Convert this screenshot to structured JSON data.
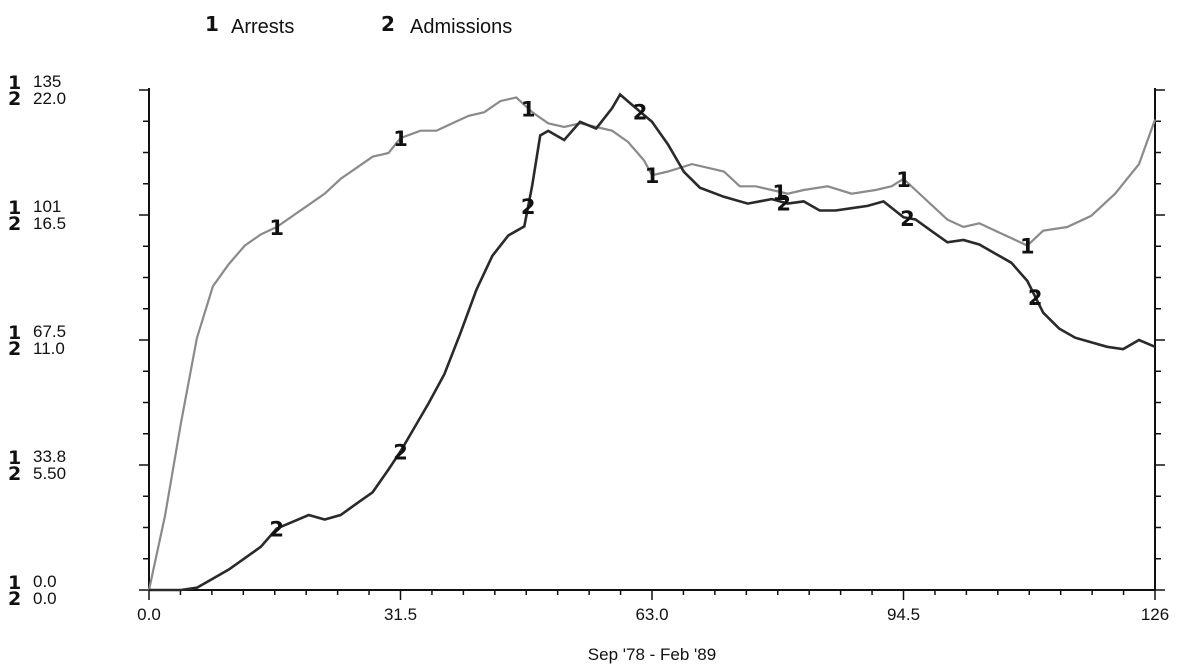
{
  "chart_data": {
    "type": "line",
    "xlabel": "Sep '78 - Feb '89",
    "xlim": [
      0,
      126
    ],
    "x_ticks": [
      "0.0",
      "31.5",
      "63.0",
      "94.5",
      "126"
    ],
    "y_axes": [
      {
        "num": "1",
        "ylim": [
          0,
          135
        ],
        "ticks": [
          "0.0",
          "33.8",
          "67.5",
          "101",
          "135"
        ]
      },
      {
        "num": "2",
        "ylim": [
          0,
          22.0
        ],
        "ticks": [
          "0.0",
          "5.50",
          "11.0",
          "16.5",
          "22.0"
        ]
      }
    ],
    "legend_position": "top-left",
    "series": [
      {
        "id": "1",
        "name": "Arrests",
        "axis": 0,
        "color": "#8a8a8a",
        "points": [
          [
            0,
            0
          ],
          [
            2,
            20
          ],
          [
            4,
            45
          ],
          [
            6,
            68
          ],
          [
            8,
            82
          ],
          [
            10,
            88
          ],
          [
            12,
            93
          ],
          [
            14,
            96
          ],
          [
            16,
            98
          ],
          [
            18,
            101
          ],
          [
            20,
            104
          ],
          [
            22,
            107
          ],
          [
            24,
            111
          ],
          [
            26,
            114
          ],
          [
            28,
            117
          ],
          [
            30,
            118
          ],
          [
            31.5,
            122
          ],
          [
            34,
            124
          ],
          [
            36,
            124
          ],
          [
            38,
            126
          ],
          [
            40,
            128
          ],
          [
            42,
            129
          ],
          [
            44,
            132
          ],
          [
            46,
            133
          ],
          [
            48,
            129
          ],
          [
            50,
            126
          ],
          [
            52,
            125
          ],
          [
            54,
            126
          ],
          [
            56,
            125
          ],
          [
            58,
            124
          ],
          [
            60,
            121
          ],
          [
            62,
            116
          ],
          [
            63,
            112
          ],
          [
            65,
            113
          ],
          [
            68,
            115
          ],
          [
            70,
            114
          ],
          [
            72,
            113
          ],
          [
            74,
            109
          ],
          [
            76,
            109
          ],
          [
            78,
            108
          ],
          [
            80,
            107
          ],
          [
            82,
            108
          ],
          [
            85,
            109
          ],
          [
            88,
            107
          ],
          [
            91,
            108
          ],
          [
            93,
            109
          ],
          [
            94.5,
            111
          ],
          [
            96,
            108
          ],
          [
            98,
            104
          ],
          [
            100,
            100
          ],
          [
            102,
            98
          ],
          [
            104,
            99
          ],
          [
            106,
            97
          ],
          [
            108,
            95
          ],
          [
            110,
            93
          ],
          [
            112,
            97
          ],
          [
            115,
            98
          ],
          [
            118,
            101
          ],
          [
            121,
            107
          ],
          [
            124,
            115
          ],
          [
            126,
            127
          ]
        ],
        "markers": [
          16,
          31.5,
          47.5,
          63,
          79,
          94.5,
          110
        ]
      },
      {
        "id": "2",
        "name": "Admissions",
        "axis": 1,
        "color": "#2a2a2a",
        "points": [
          [
            0,
            0
          ],
          [
            4,
            0
          ],
          [
            6,
            0.1
          ],
          [
            8,
            0.5
          ],
          [
            10,
            0.9
          ],
          [
            12,
            1.4
          ],
          [
            14,
            1.9
          ],
          [
            16,
            2.7
          ],
          [
            18,
            3.0
          ],
          [
            20,
            3.3
          ],
          [
            22,
            3.1
          ],
          [
            24,
            3.3
          ],
          [
            26,
            3.8
          ],
          [
            28,
            4.3
          ],
          [
            30,
            5.3
          ],
          [
            31.5,
            6.1
          ],
          [
            33,
            7.0
          ],
          [
            35,
            8.2
          ],
          [
            37,
            9.5
          ],
          [
            39,
            11.3
          ],
          [
            41,
            13.2
          ],
          [
            43,
            14.7
          ],
          [
            45,
            15.6
          ],
          [
            47,
            16.0
          ],
          [
            48,
            17.8
          ],
          [
            49,
            20.0
          ],
          [
            50,
            20.2
          ],
          [
            52,
            19.8
          ],
          [
            54,
            20.6
          ],
          [
            56,
            20.3
          ],
          [
            58,
            21.2
          ],
          [
            59,
            21.8
          ],
          [
            60,
            21.5
          ],
          [
            62,
            20.9
          ],
          [
            63,
            20.6
          ],
          [
            65,
            19.6
          ],
          [
            67,
            18.4
          ],
          [
            69,
            17.7
          ],
          [
            72,
            17.3
          ],
          [
            75,
            17.0
          ],
          [
            78,
            17.2
          ],
          [
            80,
            17.0
          ],
          [
            82,
            17.1
          ],
          [
            84,
            16.7
          ],
          [
            86,
            16.7
          ],
          [
            88,
            16.8
          ],
          [
            90,
            16.9
          ],
          [
            92,
            17.1
          ],
          [
            94.5,
            16.4
          ],
          [
            96,
            16.3
          ],
          [
            98,
            15.8
          ],
          [
            100,
            15.3
          ],
          [
            102,
            15.4
          ],
          [
            104,
            15.2
          ],
          [
            106,
            14.8
          ],
          [
            108,
            14.4
          ],
          [
            110,
            13.6
          ],
          [
            112,
            12.2
          ],
          [
            114,
            11.5
          ],
          [
            116,
            11.1
          ],
          [
            118,
            10.9
          ],
          [
            120,
            10.7
          ],
          [
            122,
            10.6
          ],
          [
            124,
            11.0
          ],
          [
            126,
            10.7
          ]
        ],
        "markers": [
          16,
          31.5,
          47.5,
          61.5,
          79.5,
          95,
          111
        ]
      }
    ]
  }
}
